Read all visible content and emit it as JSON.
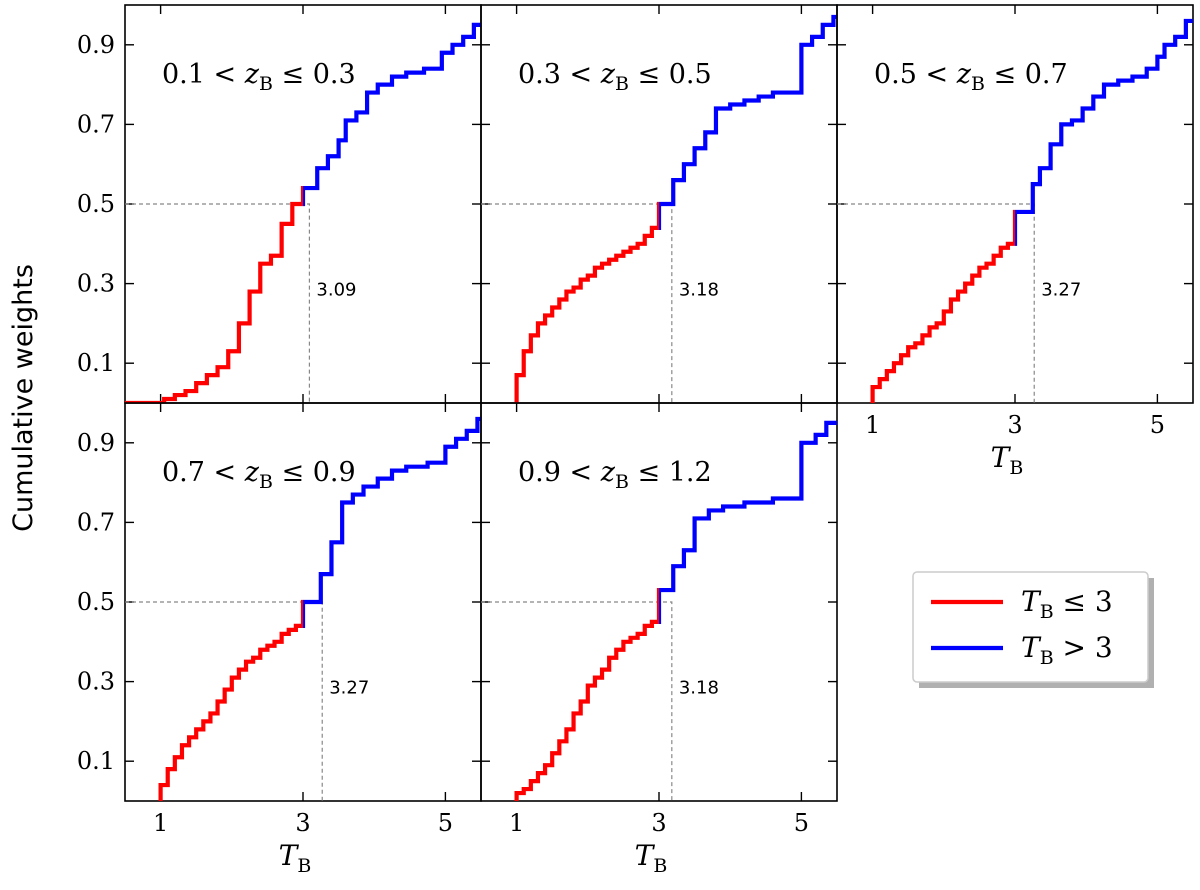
{
  "chart_data": {
    "type": "line",
    "ylabel": "Cumulative weights",
    "xlabel": "T_B",
    "xlabel_main": "T",
    "xlabel_sub": "B",
    "xlim": [
      0.5,
      5.5
    ],
    "ylim": [
      0.0,
      1.0
    ],
    "xticks": [
      1,
      3,
      5
    ],
    "yticks": [
      0.1,
      0.3,
      0.5,
      0.7,
      0.9
    ],
    "ytick_labels": [
      "0.1",
      "0.3",
      "0.5",
      "0.7",
      "0.9"
    ],
    "xtick_labels": [
      "1",
      "3",
      "5"
    ],
    "legend": {
      "placement": "center-right",
      "entries": [
        {
          "label": "T_B ≤ 3",
          "main": "T",
          "sub": "B",
          "rel": " ≤ 3",
          "color": "#ff0000"
        },
        {
          "label": "T_B > 3",
          "main": "T",
          "sub": "B",
          "rel": " > 3",
          "color": "#0000ff"
        }
      ]
    },
    "split_at": 3.0,
    "colors": {
      "low": "#ff0000",
      "high": "#0000ff",
      "guide": "#888888"
    },
    "panels": [
      {
        "label": "0.1 < z_B ≤ 0.3",
        "lo": "0.1",
        "hi": "0.3",
        "median": 3.09,
        "median_label": "3.09",
        "steps": [
          [
            0.5,
            0.0
          ],
          [
            1.0,
            0.0
          ],
          [
            1.05,
            0.01
          ],
          [
            1.2,
            0.02
          ],
          [
            1.35,
            0.03
          ],
          [
            1.5,
            0.05
          ],
          [
            1.65,
            0.07
          ],
          [
            1.8,
            0.09
          ],
          [
            1.95,
            0.13
          ],
          [
            2.1,
            0.2
          ],
          [
            2.25,
            0.28
          ],
          [
            2.4,
            0.35
          ],
          [
            2.55,
            0.37
          ],
          [
            2.7,
            0.45
          ],
          [
            2.85,
            0.5
          ],
          [
            3.0,
            0.5
          ],
          [
            3.0,
            0.54
          ],
          [
            3.2,
            0.54
          ],
          [
            3.2,
            0.59
          ],
          [
            3.35,
            0.59
          ],
          [
            3.35,
            0.62
          ],
          [
            3.5,
            0.62
          ],
          [
            3.5,
            0.66
          ],
          [
            3.6,
            0.66
          ],
          [
            3.6,
            0.71
          ],
          [
            3.75,
            0.71
          ],
          [
            3.75,
            0.73
          ],
          [
            3.9,
            0.73
          ],
          [
            3.9,
            0.78
          ],
          [
            4.05,
            0.78
          ],
          [
            4.05,
            0.8
          ],
          [
            4.25,
            0.8
          ],
          [
            4.25,
            0.82
          ],
          [
            4.45,
            0.82
          ],
          [
            4.45,
            0.83
          ],
          [
            4.7,
            0.83
          ],
          [
            4.7,
            0.84
          ],
          [
            4.95,
            0.84
          ],
          [
            4.95,
            0.88
          ],
          [
            5.1,
            0.88
          ],
          [
            5.1,
            0.9
          ],
          [
            5.25,
            0.9
          ],
          [
            5.25,
            0.92
          ],
          [
            5.4,
            0.92
          ],
          [
            5.4,
            0.95
          ],
          [
            5.5,
            0.95
          ]
        ]
      },
      {
        "label": "0.3 < z_B ≤ 0.5",
        "lo": "0.3",
        "hi": "0.5",
        "median": 3.18,
        "median_label": "3.18",
        "steps": [
          [
            1.0,
            0.0
          ],
          [
            1.0,
            0.07
          ],
          [
            1.1,
            0.13
          ],
          [
            1.2,
            0.17
          ],
          [
            1.3,
            0.2
          ],
          [
            1.4,
            0.22
          ],
          [
            1.5,
            0.24
          ],
          [
            1.6,
            0.26
          ],
          [
            1.7,
            0.28
          ],
          [
            1.8,
            0.29
          ],
          [
            1.9,
            0.31
          ],
          [
            2.0,
            0.32
          ],
          [
            2.1,
            0.34
          ],
          [
            2.2,
            0.35
          ],
          [
            2.3,
            0.36
          ],
          [
            2.4,
            0.37
          ],
          [
            2.5,
            0.38
          ],
          [
            2.6,
            0.39
          ],
          [
            2.7,
            0.4
          ],
          [
            2.8,
            0.42
          ],
          [
            2.9,
            0.44
          ],
          [
            3.0,
            0.45
          ],
          [
            3.0,
            0.5
          ],
          [
            3.2,
            0.5
          ],
          [
            3.2,
            0.56
          ],
          [
            3.35,
            0.56
          ],
          [
            3.35,
            0.6
          ],
          [
            3.5,
            0.6
          ],
          [
            3.5,
            0.64
          ],
          [
            3.65,
            0.64
          ],
          [
            3.65,
            0.68
          ],
          [
            3.8,
            0.68
          ],
          [
            3.8,
            0.74
          ],
          [
            4.0,
            0.74
          ],
          [
            4.0,
            0.75
          ],
          [
            4.2,
            0.75
          ],
          [
            4.2,
            0.76
          ],
          [
            4.4,
            0.76
          ],
          [
            4.4,
            0.77
          ],
          [
            4.6,
            0.77
          ],
          [
            4.6,
            0.78
          ],
          [
            5.0,
            0.78
          ],
          [
            5.0,
            0.9
          ],
          [
            5.15,
            0.9
          ],
          [
            5.15,
            0.92
          ],
          [
            5.3,
            0.92
          ],
          [
            5.3,
            0.95
          ],
          [
            5.45,
            0.95
          ],
          [
            5.45,
            0.97
          ],
          [
            5.5,
            0.97
          ]
        ]
      },
      {
        "label": "0.5 < z_B ≤ 0.7",
        "lo": "0.5",
        "hi": "0.7",
        "median": 3.27,
        "median_label": "3.27",
        "steps": [
          [
            1.0,
            0.0
          ],
          [
            1.0,
            0.04
          ],
          [
            1.1,
            0.06
          ],
          [
            1.2,
            0.08
          ],
          [
            1.3,
            0.1
          ],
          [
            1.4,
            0.12
          ],
          [
            1.5,
            0.14
          ],
          [
            1.6,
            0.15
          ],
          [
            1.7,
            0.17
          ],
          [
            1.8,
            0.19
          ],
          [
            1.9,
            0.2
          ],
          [
            2.0,
            0.23
          ],
          [
            2.1,
            0.26
          ],
          [
            2.2,
            0.28
          ],
          [
            2.3,
            0.3
          ],
          [
            2.4,
            0.32
          ],
          [
            2.5,
            0.34
          ],
          [
            2.6,
            0.35
          ],
          [
            2.7,
            0.37
          ],
          [
            2.8,
            0.39
          ],
          [
            2.9,
            0.4
          ],
          [
            3.0,
            0.42
          ],
          [
            3.0,
            0.48
          ],
          [
            3.25,
            0.48
          ],
          [
            3.25,
            0.55
          ],
          [
            3.35,
            0.55
          ],
          [
            3.35,
            0.59
          ],
          [
            3.5,
            0.59
          ],
          [
            3.5,
            0.65
          ],
          [
            3.65,
            0.65
          ],
          [
            3.65,
            0.7
          ],
          [
            3.8,
            0.7
          ],
          [
            3.8,
            0.71
          ],
          [
            3.95,
            0.71
          ],
          [
            3.95,
            0.74
          ],
          [
            4.1,
            0.74
          ],
          [
            4.1,
            0.77
          ],
          [
            4.25,
            0.77
          ],
          [
            4.25,
            0.8
          ],
          [
            4.45,
            0.8
          ],
          [
            4.45,
            0.81
          ],
          [
            4.65,
            0.81
          ],
          [
            4.65,
            0.82
          ],
          [
            4.85,
            0.82
          ],
          [
            4.85,
            0.84
          ],
          [
            5.0,
            0.84
          ],
          [
            5.0,
            0.87
          ],
          [
            5.1,
            0.87
          ],
          [
            5.1,
            0.9
          ],
          [
            5.25,
            0.9
          ],
          [
            5.25,
            0.92
          ],
          [
            5.4,
            0.92
          ],
          [
            5.4,
            0.96
          ],
          [
            5.5,
            0.96
          ]
        ]
      },
      {
        "label": "0.7 < z_B ≤ 0.9",
        "lo": "0.7",
        "hi": "0.9",
        "median": 3.27,
        "median_label": "3.27",
        "steps": [
          [
            1.0,
            0.0
          ],
          [
            1.0,
            0.04
          ],
          [
            1.1,
            0.08
          ],
          [
            1.2,
            0.11
          ],
          [
            1.3,
            0.14
          ],
          [
            1.4,
            0.16
          ],
          [
            1.5,
            0.18
          ],
          [
            1.6,
            0.2
          ],
          [
            1.7,
            0.22
          ],
          [
            1.8,
            0.25
          ],
          [
            1.9,
            0.28
          ],
          [
            2.0,
            0.31
          ],
          [
            2.1,
            0.33
          ],
          [
            2.2,
            0.35
          ],
          [
            2.3,
            0.36
          ],
          [
            2.4,
            0.38
          ],
          [
            2.5,
            0.39
          ],
          [
            2.6,
            0.4
          ],
          [
            2.7,
            0.42
          ],
          [
            2.8,
            0.43
          ],
          [
            2.9,
            0.44
          ],
          [
            3.0,
            0.45
          ],
          [
            3.0,
            0.5
          ],
          [
            3.25,
            0.5
          ],
          [
            3.25,
            0.57
          ],
          [
            3.4,
            0.57
          ],
          [
            3.4,
            0.65
          ],
          [
            3.55,
            0.65
          ],
          [
            3.55,
            0.75
          ],
          [
            3.7,
            0.75
          ],
          [
            3.7,
            0.77
          ],
          [
            3.85,
            0.77
          ],
          [
            3.85,
            0.79
          ],
          [
            4.05,
            0.79
          ],
          [
            4.05,
            0.81
          ],
          [
            4.25,
            0.81
          ],
          [
            4.25,
            0.83
          ],
          [
            4.45,
            0.83
          ],
          [
            4.45,
            0.84
          ],
          [
            4.75,
            0.84
          ],
          [
            4.75,
            0.85
          ],
          [
            5.0,
            0.85
          ],
          [
            5.0,
            0.89
          ],
          [
            5.15,
            0.89
          ],
          [
            5.15,
            0.91
          ],
          [
            5.3,
            0.91
          ],
          [
            5.3,
            0.93
          ],
          [
            5.45,
            0.93
          ],
          [
            5.45,
            0.96
          ],
          [
            5.5,
            0.96
          ]
        ]
      },
      {
        "label": "0.9 < z_B ≤ 1.2",
        "lo": "0.9",
        "hi": "1.2",
        "median": 3.18,
        "median_label": "3.18",
        "steps": [
          [
            1.0,
            0.0
          ],
          [
            1.0,
            0.02
          ],
          [
            1.1,
            0.03
          ],
          [
            1.2,
            0.05
          ],
          [
            1.3,
            0.07
          ],
          [
            1.4,
            0.09
          ],
          [
            1.5,
            0.12
          ],
          [
            1.6,
            0.15
          ],
          [
            1.7,
            0.18
          ],
          [
            1.8,
            0.22
          ],
          [
            1.9,
            0.25
          ],
          [
            2.0,
            0.29
          ],
          [
            2.1,
            0.31
          ],
          [
            2.2,
            0.33
          ],
          [
            2.3,
            0.36
          ],
          [
            2.4,
            0.38
          ],
          [
            2.5,
            0.4
          ],
          [
            2.6,
            0.41
          ],
          [
            2.7,
            0.42
          ],
          [
            2.8,
            0.44
          ],
          [
            2.9,
            0.45
          ],
          [
            3.0,
            0.46
          ],
          [
            3.0,
            0.53
          ],
          [
            3.2,
            0.53
          ],
          [
            3.2,
            0.59
          ],
          [
            3.35,
            0.59
          ],
          [
            3.35,
            0.63
          ],
          [
            3.5,
            0.63
          ],
          [
            3.5,
            0.71
          ],
          [
            3.7,
            0.71
          ],
          [
            3.7,
            0.73
          ],
          [
            3.9,
            0.73
          ],
          [
            3.9,
            0.74
          ],
          [
            4.2,
            0.74
          ],
          [
            4.2,
            0.75
          ],
          [
            4.6,
            0.75
          ],
          [
            4.6,
            0.76
          ],
          [
            5.0,
            0.76
          ],
          [
            5.0,
            0.9
          ],
          [
            5.2,
            0.9
          ],
          [
            5.2,
            0.92
          ],
          [
            5.35,
            0.92
          ],
          [
            5.35,
            0.95
          ],
          [
            5.5,
            0.95
          ]
        ]
      }
    ]
  }
}
